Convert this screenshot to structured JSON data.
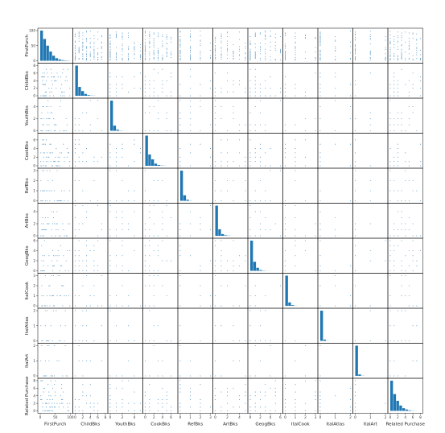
{
  "chart_data": {
    "type": "scatter",
    "kind": "scatter-matrix",
    "diagonal": "histogram",
    "grid": false,
    "color": "#1f77b4",
    "variables": [
      {
        "name": "FirstPurch",
        "label": "FirstPurch",
        "range": [
          0,
          100
        ],
        "ticks": [
          "0",
          "50",
          "100"
        ],
        "kind": "skewed",
        "max": 100
      },
      {
        "name": "ChildBks",
        "label": "ChildBks",
        "range": [
          0,
          8
        ],
        "ticks": [
          "0",
          "2",
          "4",
          "6",
          "8"
        ],
        "kind": "count",
        "max": 7,
        "hist": [
          580,
          170,
          90,
          35,
          12,
          4,
          2
        ]
      },
      {
        "name": "YouthBks",
        "label": "YouthBks",
        "range": [
          0,
          5
        ],
        "ticks": [
          "0",
          "2",
          "4"
        ],
        "kind": "count",
        "max": 5,
        "hist": [
          820,
          140,
          30,
          6,
          2,
          1
        ]
      },
      {
        "name": "CookBks",
        "label": "CookBks",
        "range": [
          0,
          7
        ],
        "ticks": [
          "0",
          "2",
          "4",
          "6"
        ],
        "kind": "count",
        "max": 6,
        "hist": [
          560,
          210,
          120,
          40,
          15,
          5,
          2
        ]
      },
      {
        "name": "RefBks",
        "label": "RefBks",
        "range": [
          0,
          3
        ],
        "ticks": [
          "0",
          "1",
          "2",
          "3"
        ],
        "kind": "count",
        "max": 3,
        "hist": [
          820,
          150,
          30,
          5
        ]
      },
      {
        "name": "ArtBks",
        "label": "ArtBks",
        "range": [
          0,
          5
        ],
        "ticks": [
          "0",
          "2",
          "4"
        ],
        "kind": "count",
        "max": 5,
        "hist": [
          780,
          170,
          45,
          12,
          4,
          1
        ]
      },
      {
        "name": "GeogBks",
        "label": "GeogBks",
        "range": [
          0,
          6
        ],
        "ticks": [
          "0",
          "2",
          "4",
          "6"
        ],
        "kind": "count",
        "max": 6,
        "hist": [
          700,
          210,
          70,
          20,
          6,
          2,
          1
        ]
      },
      {
        "name": "ItalCook",
        "label": "ItalCook",
        "range": [
          0,
          3
        ],
        "ticks": [
          "0",
          "1",
          "2",
          "3"
        ],
        "kind": "count",
        "max": 3,
        "hist": [
          880,
          100,
          20,
          3
        ]
      },
      {
        "name": "ItalAtlas",
        "label": "ItalAtlas",
        "range": [
          0,
          2
        ],
        "ticks": [
          "0",
          "1",
          "2"
        ],
        "kind": "count",
        "max": 2,
        "hist": [
          960,
          40,
          4
        ]
      },
      {
        "name": "ItalArt",
        "label": "ItalArt",
        "range": [
          0,
          2
        ],
        "ticks": [
          "0",
          "1",
          "2"
        ],
        "kind": "count",
        "max": 2,
        "hist": [
          950,
          45,
          5
        ]
      },
      {
        "name": "Related Purchase",
        "label": "Related Purchase",
        "range": [
          0,
          8
        ],
        "ticks": [
          "0",
          "2",
          "4",
          "6",
          "8"
        ],
        "kind": "count",
        "max": 8,
        "hist": [
          450,
          250,
          150,
          80,
          40,
          20,
          8,
          3,
          1
        ]
      }
    ],
    "firstpurch_hist": [
      180,
      130,
      90,
      55,
      30,
      15,
      8,
      4,
      2,
      1
    ]
  }
}
